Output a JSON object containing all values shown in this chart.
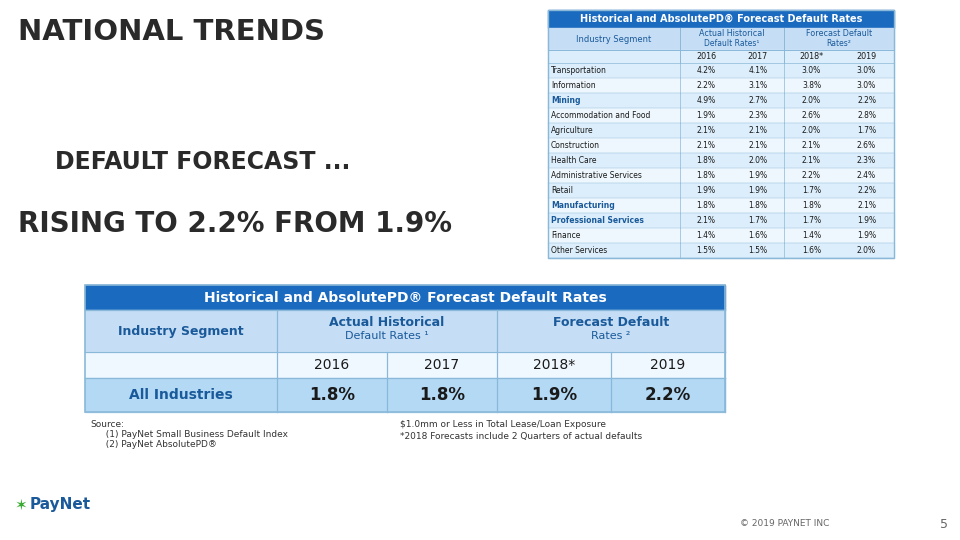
{
  "title_line1": "NATIONAL TRENDS",
  "title_line2": "DEFAULT FORECAST ...",
  "title_line3": "RISING TO 2.2% FROM 1.9%",
  "large_table": {
    "title": "Historical and AbsolutePD® Forecast Default Rates",
    "year_headers": [
      "2016",
      "2017",
      "2018*",
      "2019"
    ],
    "rows": [
      [
        "Transportation",
        "4.2%",
        "4.1%",
        "3.0%",
        "3.0%"
      ],
      [
        "Information",
        "2.2%",
        "3.1%",
        "3.8%",
        "3.0%"
      ],
      [
        "Mining",
        "4.9%",
        "2.7%",
        "2.0%",
        "2.2%"
      ],
      [
        "Accommodation and Food",
        "1.9%",
        "2.3%",
        "2.6%",
        "2.8%"
      ],
      [
        "Agriculture",
        "2.1%",
        "2.1%",
        "2.0%",
        "1.7%"
      ],
      [
        "Construction",
        "2.1%",
        "2.1%",
        "2.1%",
        "2.6%"
      ],
      [
        "Health Care",
        "1.8%",
        "2.0%",
        "2.1%",
        "2.3%"
      ],
      [
        "Administrative Services",
        "1.8%",
        "1.9%",
        "2.2%",
        "2.4%"
      ],
      [
        "Retail",
        "1.9%",
        "1.9%",
        "1.7%",
        "2.2%"
      ],
      [
        "Manufacturing",
        "1.8%",
        "1.8%",
        "1.8%",
        "2.1%"
      ],
      [
        "Professional Services",
        "2.1%",
        "1.7%",
        "1.7%",
        "1.9%"
      ],
      [
        "Finance",
        "1.4%",
        "1.6%",
        "1.4%",
        "1.9%"
      ],
      [
        "Other Services",
        "1.5%",
        "1.5%",
        "1.6%",
        "2.0%"
      ]
    ],
    "bold_rows": [
      2,
      9,
      10
    ]
  },
  "small_table": {
    "title": "Historical and AbsolutePD® Forecast Default Rates",
    "year_headers": [
      "2016",
      "2017",
      "2018*",
      "2019"
    ],
    "row_label": "All Industries",
    "values": [
      "1.8%",
      "1.8%",
      "1.9%",
      "2.2%"
    ]
  },
  "source_line1": "Source:",
  "source_line2": "  (1) PayNet Small Business Default Index",
  "source_line3": "  (2) PayNet AbsolutePD®",
  "footnote1": "$1.0mm or Less in Total Lease/Loan Exposure",
  "footnote2": "*2018 Forecasts include 2 Quarters of actual defaults",
  "copyright": "© 2019 PAYNET INC",
  "page_num": "5",
  "color_header_bg": "#1a6abf",
  "color_subheader_bg": "#c5ddf5",
  "color_year_bg": "#dceefb",
  "color_row_even": "#dceefb",
  "color_row_odd": "#eef7fd",
  "color_allind_bg": "#b3d9f5",
  "color_border": "#8ab8d8",
  "color_header_text": "#ffffff",
  "color_subheader_text": "#1a5a9a",
  "color_bold_text": "#1a5a9a",
  "color_normal_text": "#1a1a1a",
  "color_title_text": "#2a2a2a",
  "color_paynet_blue": "#1a5a9a",
  "color_paynet_green": "#3aaa35"
}
